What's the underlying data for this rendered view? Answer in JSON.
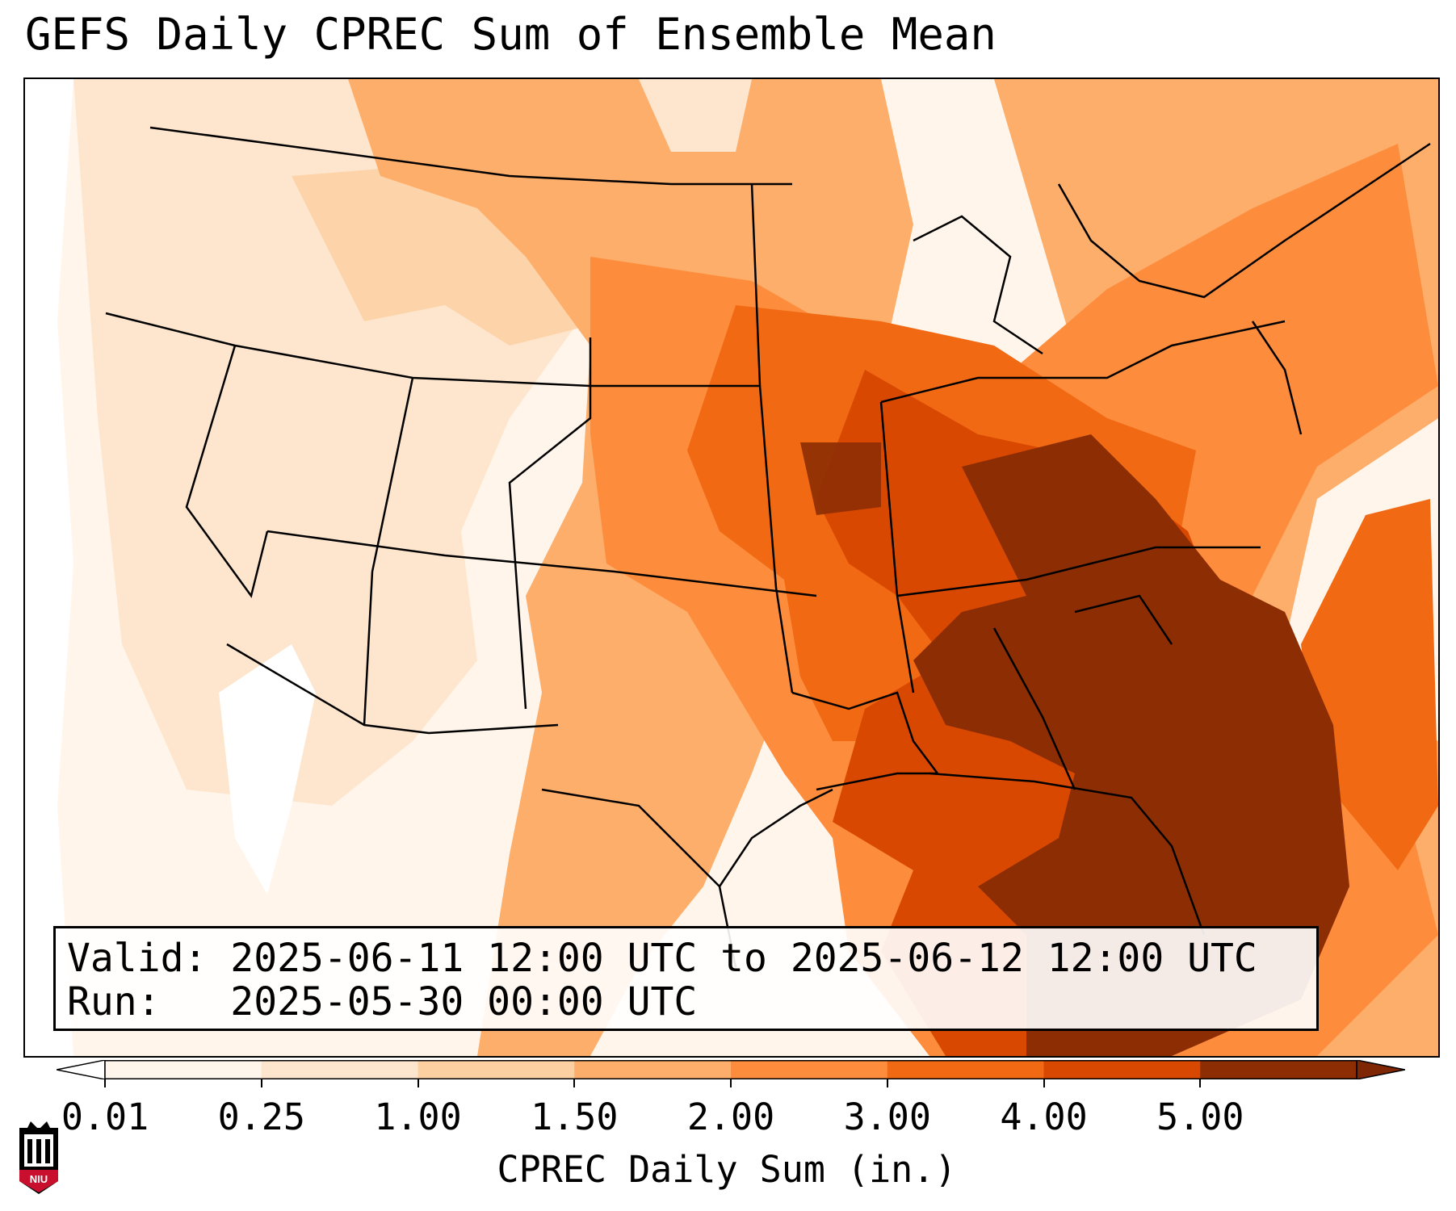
{
  "title": "GEFS Daily CPREC Sum of Ensemble Mean",
  "info": {
    "valid_line": "Valid: 2025-06-11 12:00 UTC to 2025-06-12 12:00 UTC",
    "run_line": "Run:   2025-05-30 00:00 UTC"
  },
  "colorbar": {
    "label": "CPREC Daily Sum (in.)",
    "ticks": [
      "0.01",
      "0.25",
      "1.00",
      "1.50",
      "2.00",
      "3.00",
      "4.00",
      "5.00"
    ],
    "colors": [
      "#fff5eb",
      "#fee6ce",
      "#fdd0a2",
      "#fdae6b",
      "#fd8d3c",
      "#f16913",
      "#d94801",
      "#8c2d04"
    ],
    "under_color": "#ffffff",
    "over_color": "#7f2704",
    "extend": "both"
  },
  "logo": {
    "text": "NIU"
  },
  "colors": {
    "accent": "#d94801",
    "brand": "#c8102e"
  },
  "icons": [
    "niu-logo-icon"
  ]
}
